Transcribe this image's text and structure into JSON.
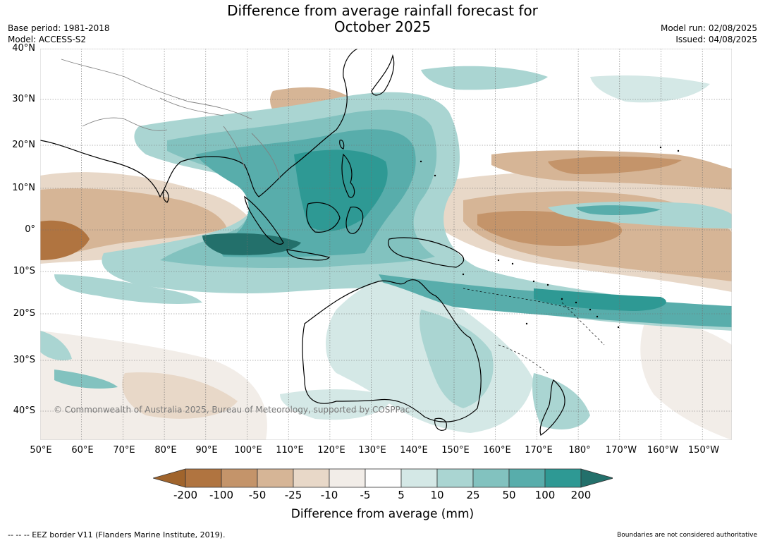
{
  "title_line1": "Difference from average rainfall forecast for",
  "title_line2": "October 2025",
  "base_period": "Base period: 1981-2018",
  "model": "Model: ACCESS-S2",
  "model_run": "Model run: 02/08/2025",
  "issued": "Issued: 04/08/2025",
  "lat_labels": [
    "40°N",
    "30°N",
    "20°N",
    "10°N",
    "0°",
    "10°S",
    "20°S",
    "30°S",
    "40°S"
  ],
  "lon_labels": [
    "50°E",
    "60°E",
    "70°E",
    "80°E",
    "90°E",
    "100°E",
    "110°E",
    "120°E",
    "130°E",
    "140°E",
    "150°E",
    "160°E",
    "170°E",
    "180°",
    "170°W",
    "160°W",
    "150°W"
  ],
  "copyright": "© Commonwealth of Australia 2025, Bureau of Meteorology, supported by COSPPac",
  "colorbar": {
    "ticks": [
      "-200",
      "-100",
      "-50",
      "-25",
      "-10",
      "-5",
      "5",
      "10",
      "25",
      "50",
      "100",
      "200"
    ],
    "colors": [
      "#a0642c",
      "#b07440",
      "#c4946a",
      "#d6b596",
      "#e8d8c8",
      "#f2ede8",
      "#ffffff",
      "#d4e8e6",
      "#aad5d2",
      "#82c2bf",
      "#58adab",
      "#2e9994",
      "#23706b"
    ],
    "label": "Difference from average (mm)"
  },
  "footer_left": "--  --  -- EEZ border V11 (Flanders Marine Institute, 2019).",
  "footer_right": "Boundaries are not considered authoritative"
}
